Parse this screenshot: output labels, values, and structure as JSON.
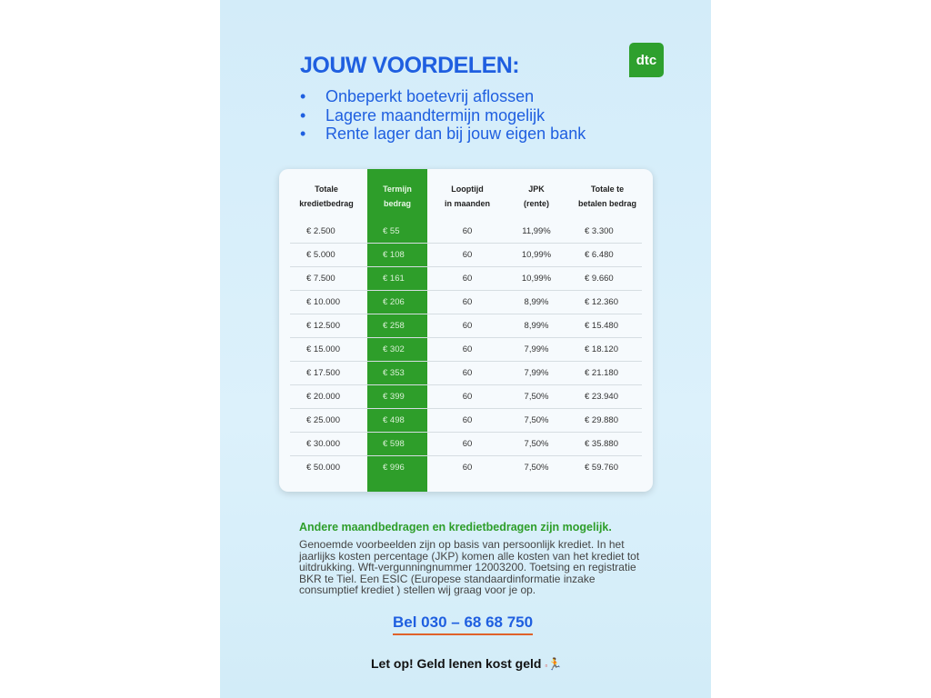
{
  "header": {
    "title": "JOUW VOORDELEN:",
    "logo_text": "dtc"
  },
  "benefits": [
    "Onbeperkt boetevrij aflossen",
    "Lagere maandtermijn mogelijk",
    "Rente lager dan bij jouw eigen bank"
  ],
  "colors": {
    "blue": "#1f5fe0",
    "green": "#2e9e2a",
    "underline": "#e0622a"
  },
  "table": {
    "columns": [
      [
        "Totale",
        "kredietbedrag"
      ],
      [
        "Termijn",
        "bedrag"
      ],
      [
        "Looptijd",
        "in maanden"
      ],
      [
        "JPK",
        "(rente)"
      ],
      [
        "Totale te",
        "betalen bedrag"
      ]
    ],
    "rows": [
      [
        "€ 2.500",
        "€ 55",
        "60",
        "11,99%",
        "€ 3.300"
      ],
      [
        "€ 5.000",
        "€ 108",
        "60",
        "10,99%",
        "€ 6.480"
      ],
      [
        "€ 7.500",
        "€ 161",
        "60",
        "10,99%",
        "€ 9.660"
      ],
      [
        "€ 10.000",
        "€ 206",
        "60",
        "8,99%",
        "€ 12.360"
      ],
      [
        "€ 12.500",
        "€ 258",
        "60",
        "8,99%",
        "€ 15.480"
      ],
      [
        "€ 15.000",
        "€ 302",
        "60",
        "7,99%",
        "€ 18.120"
      ],
      [
        "€ 17.500",
        "€ 353",
        "60",
        "7,99%",
        "€ 21.180"
      ],
      [
        "€ 20.000",
        "€ 399",
        "60",
        "7,50%",
        "€ 23.940"
      ],
      [
        "€ 25.000",
        "€ 498",
        "60",
        "7,50%",
        "€ 29.880"
      ],
      [
        "€ 30.000",
        "€ 598",
        "60",
        "7,50%",
        "€ 35.880"
      ],
      [
        "€ 50.000",
        "€ 996",
        "60",
        "7,50%",
        "€ 59.760"
      ]
    ]
  },
  "footer": {
    "subtitle": "Andere maandbedragen en kredietbedragen zijn mogelijk.",
    "body": "Genoemde voorbeelden zijn op basis van persoonlijk krediet. In het jaarlijks kosten percentage (JKP) komen alle kosten van het krediet tot uitdrukking. Wft-vergunningnummer 12003200. Toetsing en registratie BKR te Tiel. Een ESIC (Europese standaardinformatie inzake consumptief krediet ) stellen wij graag voor je op.",
    "phone": "Bel 030 – 68 68 750",
    "warning": "Let op! Geld lenen kost geld"
  }
}
